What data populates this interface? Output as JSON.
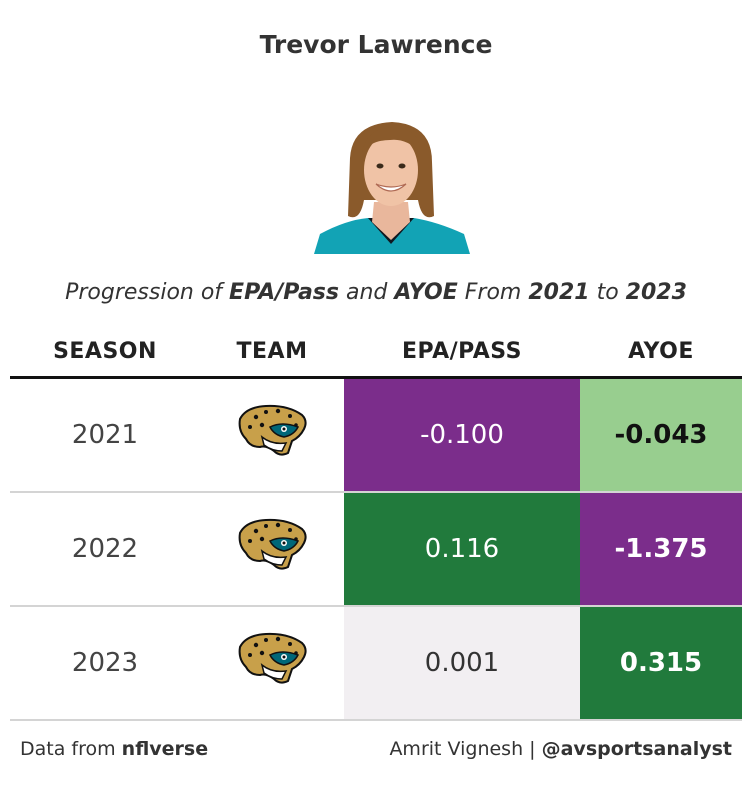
{
  "title": "Trevor Lawrence",
  "subtitle": {
    "p1": "Progression of ",
    "k1": "EPA/Pass",
    "p2": " and ",
    "k2": "AYOE",
    "p3": " From ",
    "k3": "2021",
    "p4": " to ",
    "k4": "2023"
  },
  "colors": {
    "purple": "#7b2d8b",
    "green": "#217a3c",
    "light_green": "#98ce8f",
    "light_grey": "#f2eff2",
    "jaguars_gold": "#c8a04a",
    "jaguars_teal": "#006778",
    "jersey_teal": "#12a3b5"
  },
  "chart_data": {
    "type": "table",
    "columns": [
      "SEASON",
      "TEAM",
      "EPA/PASS",
      "AYOE"
    ],
    "rows": [
      {
        "season": "2021",
        "team_icon": "jaguars-logo-icon",
        "epa": "-0.100",
        "ayoe": "-0.043",
        "epa_fill": "#7b2d8b",
        "epa_text": "#ffffff",
        "ayoe_fill": "#98ce8f",
        "ayoe_text": "#111111"
      },
      {
        "season": "2022",
        "team_icon": "jaguars-logo-icon",
        "epa": "0.116",
        "ayoe": "-1.375",
        "epa_fill": "#217a3c",
        "epa_text": "#ffffff",
        "ayoe_fill": "#7b2d8b",
        "ayoe_text": "#ffffff"
      },
      {
        "season": "2023",
        "team_icon": "jaguars-logo-icon",
        "epa": "0.001",
        "ayoe": "0.315",
        "epa_fill": "#f2eff2",
        "epa_text": "#333333",
        "ayoe_fill": "#217a3c",
        "ayoe_text": "#ffffff"
      }
    ]
  },
  "footer": {
    "left_prefix": "Data from ",
    "left_source": "nflverse",
    "right_prefix": "Amrit Vignesh | ",
    "right_handle": "@avsportsanalyst"
  }
}
